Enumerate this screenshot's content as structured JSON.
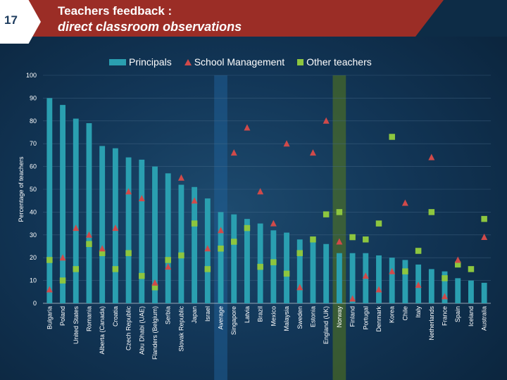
{
  "header": {
    "slide_number": "17",
    "title_line1": "Teachers feedback :",
    "title_line2": "direct classroom observations"
  },
  "colors": {
    "principals": "#2a9fb0",
    "school_management": "#d04a4a",
    "other_teachers": "#8dc63f",
    "highlight_average": "#1f5f96",
    "highlight_norway": "#5a7a1a"
  },
  "chart_data": {
    "type": "bar",
    "title": "Teachers feedback : direct classroom observations",
    "ylabel": "Percentage of teachers",
    "xlabel": "",
    "ylim": [
      0,
      100
    ],
    "yticks": [
      0,
      10,
      20,
      30,
      40,
      50,
      60,
      70,
      80,
      90,
      100
    ],
    "legend": [
      "Principals",
      "School Management",
      "Other teachers"
    ],
    "highlighted_categories": [
      "Average",
      "Norway"
    ],
    "categories": [
      "Bulgaria",
      "Poland",
      "United States",
      "Romania",
      "Alberta (Canada)",
      "Croatia",
      "Czech Republic",
      "Abu Dhabi (UAE)",
      "Flanders (Belgium)",
      "Serbia",
      "Slovak Republic",
      "Japan",
      "Israel",
      "Average",
      "Singapore",
      "Latvia",
      "Brazil",
      "Mexico",
      "Malaysia",
      "Sweden",
      "Estonia",
      "England (UK)",
      "Norway",
      "Finland",
      "Portugal",
      "Denmark",
      "Korea",
      "Chile",
      "Italy",
      "Netherlands",
      "France",
      "Spain",
      "Iceland",
      "Australia"
    ],
    "series": [
      {
        "name": "Principals",
        "kind": "bar",
        "values": [
          90,
          87,
          81,
          79,
          69,
          68,
          64,
          63,
          60,
          57,
          52,
          51,
          46,
          40,
          39,
          37,
          35,
          32,
          31,
          28,
          27,
          26,
          22,
          22,
          22,
          21,
          20,
          19,
          17,
          15,
          14,
          11,
          10,
          9
        ]
      },
      {
        "name": "School Management",
        "kind": "triangle",
        "values": [
          6,
          20,
          33,
          30,
          24,
          33,
          49,
          46,
          9,
          16,
          55,
          45,
          24,
          32,
          66,
          77,
          49,
          35,
          70,
          7,
          66,
          80,
          27,
          2,
          12,
          6,
          14,
          44,
          8,
          64,
          3,
          19,
          null,
          29
        ]
      },
      {
        "name": "Other teachers",
        "kind": "square",
        "values": [
          19,
          10,
          15,
          26,
          22,
          15,
          22,
          12,
          7,
          19,
          21,
          35,
          15,
          24,
          27,
          33,
          16,
          18,
          13,
          22,
          28,
          39,
          40,
          29,
          28,
          35,
          73,
          14,
          23,
          40,
          11,
          17,
          15,
          37
        ]
      }
    ]
  }
}
